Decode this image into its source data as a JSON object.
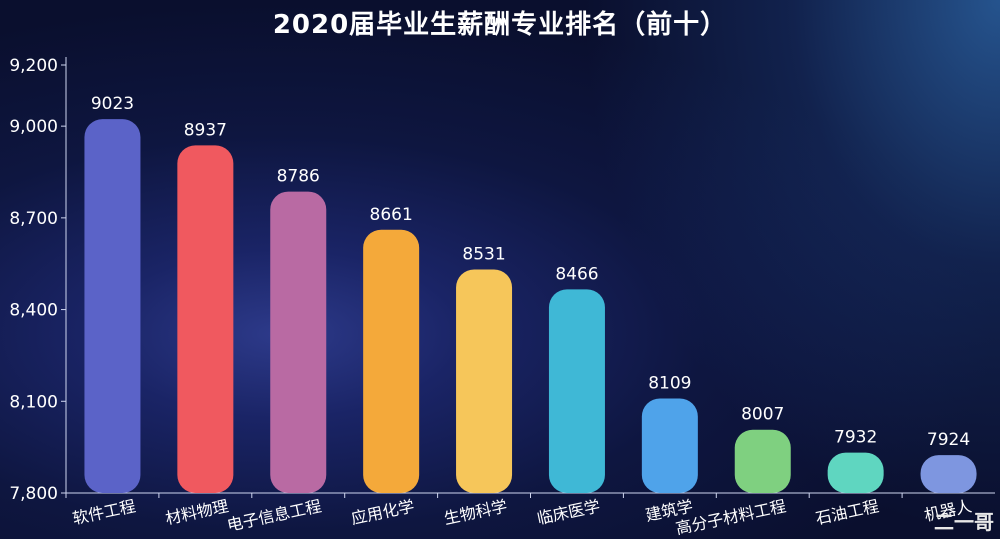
{
  "title": "2020届毕业生薪酬专业排名（前十）",
  "watermark": "二一哥",
  "chart_data": {
    "type": "bar",
    "title": "2020届毕业生薪酬专业排名（前十）",
    "xlabel": "",
    "ylabel": "",
    "ylim": [
      7800,
      9200
    ],
    "yticks": [
      7800,
      8100,
      8400,
      8700,
      9000,
      9200
    ],
    "ytick_labels": [
      "7,800",
      "8,100",
      "8,400",
      "8,700",
      "9,000",
      "9,200"
    ],
    "grid": false,
    "categories": [
      "软件工程",
      "材料物理",
      "电子信息工程",
      "应用化学",
      "生物科学",
      "临床医学",
      "建筑学",
      "高分子材料工程",
      "石油工程",
      "机器人"
    ],
    "values": [
      9023,
      8937,
      8786,
      8661,
      8531,
      8466,
      8109,
      8007,
      7932,
      7924
    ],
    "data_labels": [
      "9023",
      "8937",
      "8786",
      "8661",
      "8531",
      "8466",
      "8109",
      "8007",
      "7932",
      "7924"
    ],
    "colors": [
      "#5b63c8",
      "#f0595f",
      "#b96aa3",
      "#f4a93a",
      "#f6c65a",
      "#3fb8d6",
      "#4fa3ea",
      "#7fd080",
      "#5fd6c0",
      "#7e96e0"
    ]
  }
}
